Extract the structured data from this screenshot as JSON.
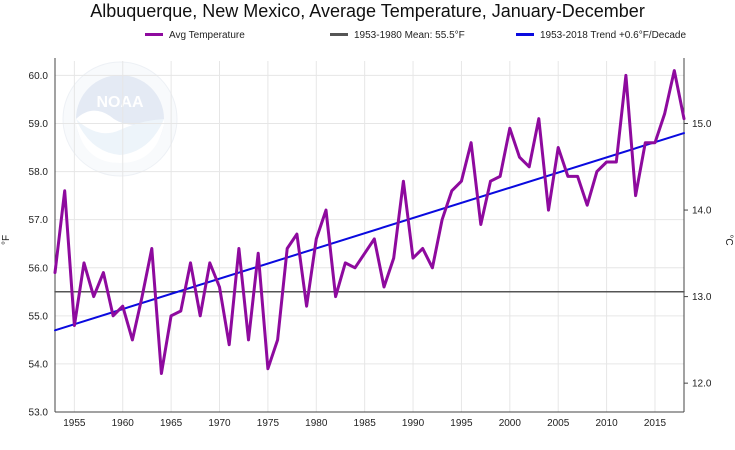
{
  "chart_data": {
    "type": "line",
    "title": "Albuquerque, New Mexico, Average Temperature, January-December",
    "ylabel_left": "°F",
    "ylabel_right": "°C",
    "xlim": [
      1953,
      2018
    ],
    "ylim": [
      53.0,
      60.3
    ],
    "x_ticks": [
      1955,
      1960,
      1965,
      1970,
      1975,
      1980,
      1985,
      1990,
      1995,
      2000,
      2005,
      2010,
      2015
    ],
    "y_ticks": [
      53.0,
      54.0,
      55.0,
      56.0,
      57.0,
      58.0,
      59.0,
      60.0
    ],
    "y_ticks_c": [
      12.0,
      13.0,
      14.0,
      15.0
    ],
    "grid": true,
    "legend_position": "top",
    "series": [
      {
        "name": "Avg Temperature",
        "color": "#8e0a9e",
        "x": [
          1953,
          1954,
          1955,
          1956,
          1957,
          1958,
          1959,
          1960,
          1961,
          1962,
          1963,
          1964,
          1965,
          1966,
          1967,
          1968,
          1969,
          1970,
          1971,
          1972,
          1973,
          1974,
          1975,
          1976,
          1977,
          1978,
          1979,
          1980,
          1981,
          1982,
          1983,
          1984,
          1985,
          1986,
          1987,
          1988,
          1989,
          1990,
          1991,
          1992,
          1993,
          1994,
          1995,
          1996,
          1997,
          1998,
          1999,
          2000,
          2001,
          2002,
          2003,
          2004,
          2005,
          2006,
          2007,
          2008,
          2009,
          2010,
          2011,
          2012,
          2013,
          2014,
          2015,
          2016,
          2017,
          2018
        ],
        "values": [
          55.9,
          57.6,
          54.8,
          56.1,
          55.4,
          55.9,
          55.0,
          55.2,
          54.5,
          55.4,
          56.4,
          53.8,
          55.0,
          55.1,
          56.1,
          55.0,
          56.1,
          55.6,
          54.4,
          56.4,
          54.5,
          56.3,
          53.9,
          54.5,
          56.4,
          56.7,
          55.2,
          56.6,
          57.2,
          55.4,
          56.1,
          56.0,
          56.3,
          56.6,
          55.6,
          56.2,
          57.8,
          56.2,
          56.4,
          56.0,
          57.0,
          57.6,
          57.8,
          58.6,
          56.9,
          57.8,
          57.9,
          58.9,
          58.3,
          58.1,
          59.1,
          57.2,
          58.5,
          57.9,
          57.9,
          57.3,
          58.0,
          58.2,
          58.2,
          60.0,
          57.5,
          58.6,
          58.6,
          59.2,
          60.1,
          59.1
        ]
      },
      {
        "name": "1953-1980 Mean: 55.5°F",
        "color": "#555555",
        "x": [
          1953,
          2018
        ],
        "values": [
          55.5,
          55.5
        ]
      },
      {
        "name": "1953-2018 Trend +0.6°F/Decade",
        "color": "#0a0adf",
        "x": [
          1953,
          2018
        ],
        "values": [
          54.7,
          58.8
        ]
      }
    ]
  }
}
